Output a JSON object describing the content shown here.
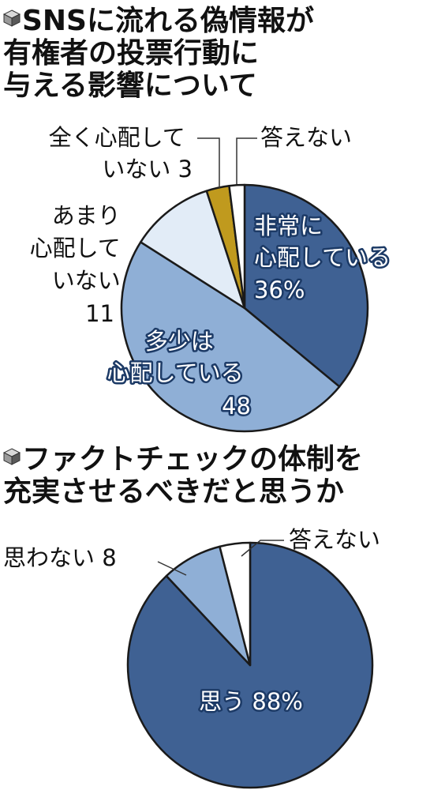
{
  "chart_data": [
    {
      "type": "pie",
      "title": "SNSに流れる偽情報が有権者の投票行動に与える影響について",
      "title_lines": [
        "SNSに流れる偽情報が",
        "有権者の投票行動に",
        "与える影響について"
      ],
      "slices": [
        {
          "name": "非常に心配している",
          "value": 36,
          "color": "#3f6193",
          "label_lines": [
            "非常に",
            "心配している",
            "36%"
          ]
        },
        {
          "name": "多少は心配している",
          "value": 48,
          "color": "#8fafd6",
          "label_lines": [
            "多少は",
            "心配している",
            "48"
          ]
        },
        {
          "name": "あまり心配していない",
          "value": 11,
          "color": "#e2ecf7",
          "label_lines": [
            "あまり",
            "心配して",
            "いない",
            "11"
          ]
        },
        {
          "name": "全く心配していない",
          "value": 3,
          "color": "#c09a1e",
          "label_lines": [
            "全く心配して",
            "いない 3"
          ]
        },
        {
          "name": "答えない",
          "value": 2,
          "color": "#ffffff",
          "label_lines": [
            "答えない"
          ]
        }
      ]
    },
    {
      "type": "pie",
      "title": "ファクトチェックの体制を充実させるべきだと思うか",
      "title_lines": [
        "ファクトチェックの体制を",
        "充実させるべきだと思うか"
      ],
      "slices": [
        {
          "name": "思う",
          "value": 88,
          "color": "#3f6193",
          "label_lines": [
            "思う 88%"
          ]
        },
        {
          "name": "思わない",
          "value": 8,
          "color": "#8fafd6",
          "label_lines": [
            "思わない 8"
          ]
        },
        {
          "name": "答えない",
          "value": 4,
          "color": "#ffffff",
          "label_lines": [
            "答えない"
          ]
        }
      ]
    }
  ],
  "icons": {
    "bullet": "cube-icon"
  },
  "colors": {
    "dark": "#3f6193",
    "medium": "#8fafd6",
    "light": "#e2ecf7",
    "gold": "#c09a1e",
    "outline": "#1a1a1a"
  }
}
